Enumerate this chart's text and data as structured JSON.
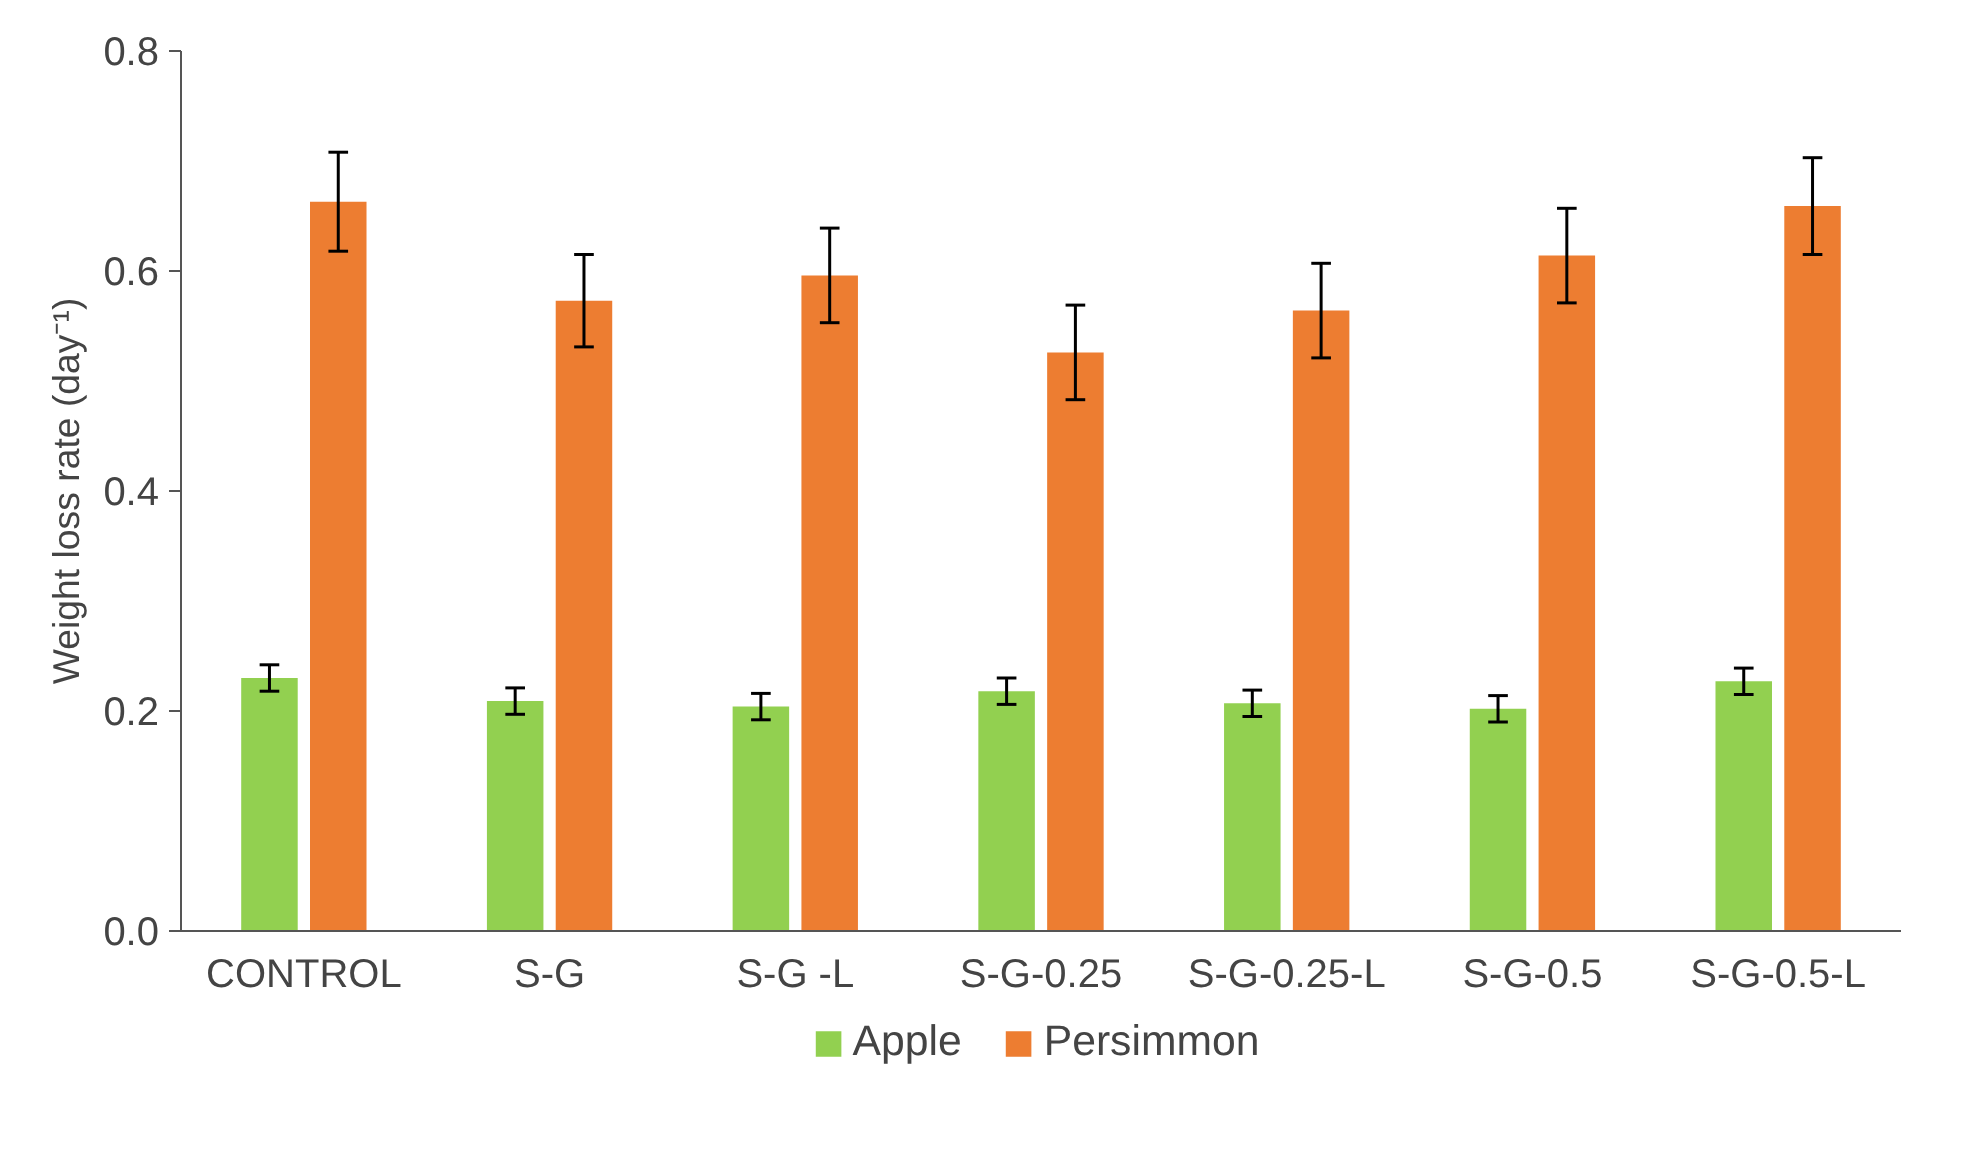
{
  "chart_data": {
    "type": "bar",
    "ylabel": "Weight loss rate (day⁻¹)",
    "categories": [
      "CONTROL",
      "S-G",
      "S-G -L",
      "S-G-0.25",
      "S-G-0.25-L",
      "S-G-0.5",
      "S-G-0.5-L"
    ],
    "series": [
      {
        "name": "Apple",
        "color": "#92d050",
        "values": [
          0.23,
          0.209,
          0.204,
          0.218,
          0.207,
          0.202,
          0.227
        ],
        "errors": [
          0.012,
          0.012,
          0.012,
          0.012,
          0.012,
          0.012,
          0.012
        ]
      },
      {
        "name": "Persimmon",
        "color": "#ed7d31",
        "values": [
          0.663,
          0.573,
          0.596,
          0.526,
          0.564,
          0.614,
          0.659
        ],
        "errors": [
          0.045,
          0.042,
          0.043,
          0.043,
          0.043,
          0.043,
          0.044
        ]
      }
    ],
    "ylim": [
      0,
      0.8
    ],
    "yticks": [
      {
        "value": 0,
        "label": "0.0"
      },
      {
        "value": 0.2,
        "label": "0.2"
      },
      {
        "value": 0.4,
        "label": "0.4"
      },
      {
        "value": 0.6,
        "label": "0.6"
      },
      {
        "value": 0.8,
        "label": "0.8"
      }
    ],
    "grid": false,
    "legend": "bottom"
  }
}
